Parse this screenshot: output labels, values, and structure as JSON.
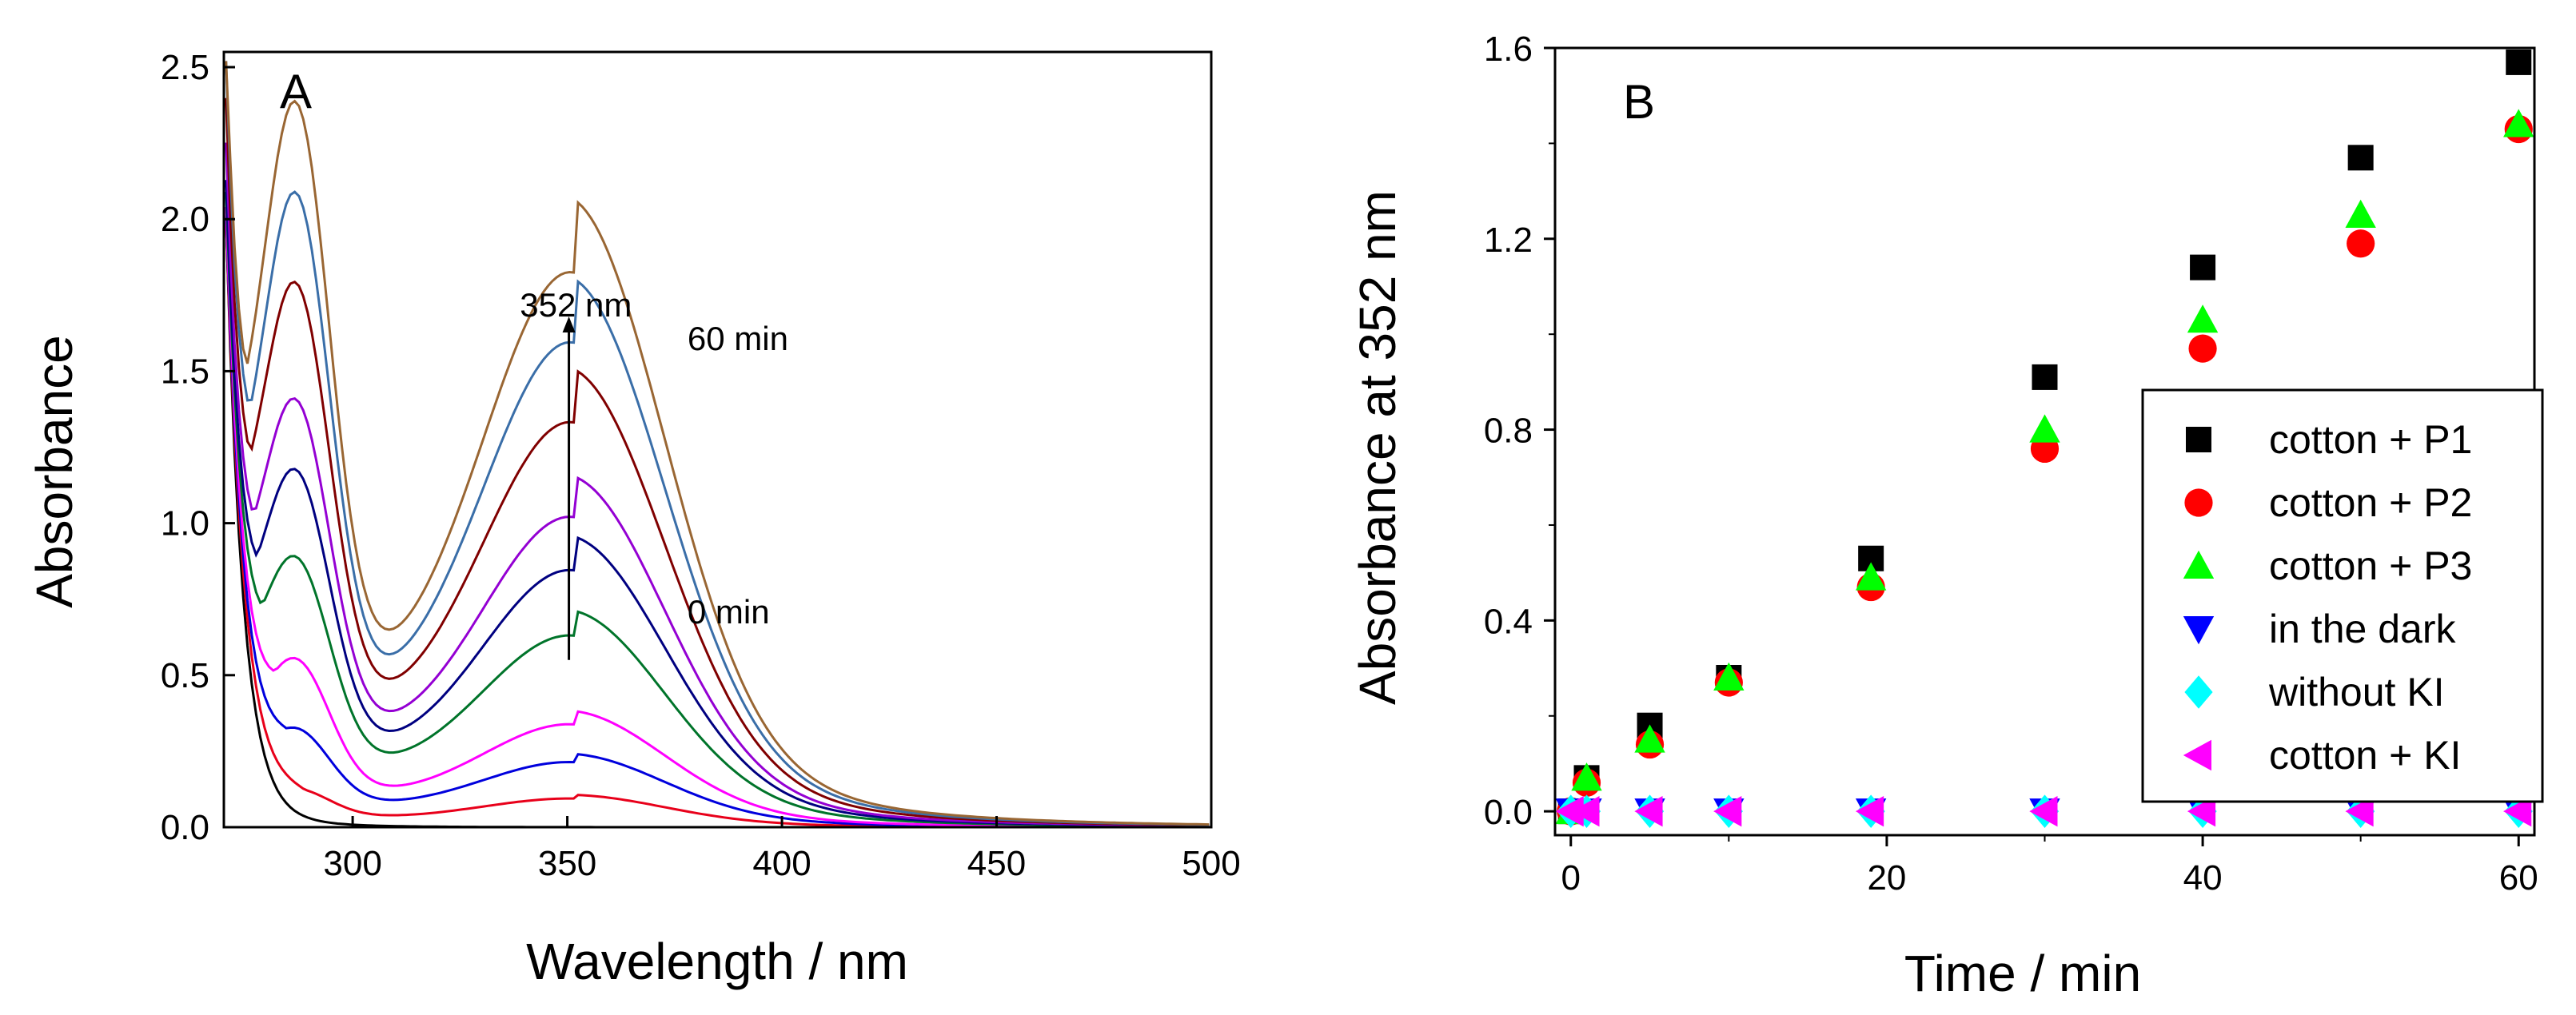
{
  "chart_data": [
    {
      "panel": "A",
      "type": "line",
      "xlabel": "Wavelength / nm",
      "ylabel": "Absorbance",
      "xlim": [
        270,
        500
      ],
      "ylim": [
        0,
        2.55
      ],
      "xticks": [
        300,
        350,
        400,
        450,
        500
      ],
      "yticks": [
        0.0,
        0.5,
        1.0,
        1.5,
        2.0,
        2.5
      ],
      "grid": false,
      "legend": "none",
      "annotations": [
        {
          "text": "352 nm",
          "x": 352,
          "y": 1.68
        },
        {
          "text": "60 min",
          "x": 378,
          "y": 1.57
        },
        {
          "text": "0 min",
          "x": 378,
          "y": 0.67
        }
      ],
      "annotation_arrow": {
        "x": 350,
        "from_y": 0.55,
        "to_y": 1.68
      },
      "series": [
        {
          "color": "#000000",
          "values": {
            "start": 2.2,
            "shoulder": 0.06,
            "peak1": 0.0,
            "valley": 0.0,
            "peak2": 0.0
          }
        },
        {
          "color": "#e8001a",
          "values": {
            "start": 2.2,
            "shoulder": 0.17,
            "peak1": 0.1,
            "valley": 0.05,
            "peak2": 0.08
          }
        },
        {
          "color": "#0000dd",
          "values": {
            "start": 2.2,
            "shoulder": 0.35,
            "peak1": 0.28,
            "valley": 0.12,
            "peak2": 0.18
          }
        },
        {
          "color": "#ff00ff",
          "values": {
            "start": 2.2,
            "shoulder": 0.55,
            "peak1": 0.5,
            "valley": 0.17,
            "peak2": 0.29
          }
        },
        {
          "color": "#00742a",
          "values": {
            "start": 2.2,
            "shoulder": 0.9,
            "peak1": 0.78,
            "valley": 0.32,
            "peak2": 0.54
          }
        },
        {
          "color": "#000080",
          "values": {
            "start": 2.2,
            "shoulder": 1.1,
            "peak1": 1.06,
            "valley": 0.41,
            "peak2": 0.73
          }
        },
        {
          "color": "#9400d3",
          "values": {
            "start": 2.3,
            "shoulder": 1.3,
            "peak1": 1.27,
            "valley": 0.5,
            "peak2": 0.88
          }
        },
        {
          "color": "#800000",
          "values": {
            "start": 2.4,
            "shoulder": 1.55,
            "peak1": 1.64,
            "valley": 0.65,
            "peak2": 1.15
          }
        },
        {
          "color": "#3a6ea8",
          "values": {
            "start": 2.5,
            "shoulder": 1.65,
            "peak1": 1.95,
            "valley": 0.77,
            "peak2": 1.38
          }
        },
        {
          "color": "#996633",
          "values": {
            "start": 2.5,
            "shoulder": 1.88,
            "peak1": 2.23,
            "valley": 0.88,
            "peak2": 1.58
          }
        }
      ]
    },
    {
      "panel": "B",
      "type": "scatter",
      "xlabel": "Time / min",
      "ylabel": "Absorbance at 352 nm",
      "xlim": [
        -1,
        61
      ],
      "ylim": [
        -0.05,
        1.6
      ],
      "xticks": [
        0,
        20,
        40,
        60
      ],
      "yticks": [
        0.0,
        0.4,
        0.8,
        1.2,
        1.6
      ],
      "grid": false,
      "legend": "right",
      "series": [
        {
          "name": "cotton + P1",
          "marker": "square",
          "color": "#000000",
          "x": [
            0,
            1,
            5,
            10,
            19,
            30,
            40,
            50,
            60
          ],
          "y": [
            0.0,
            0.07,
            0.18,
            0.28,
            0.53,
            0.91,
            1.14,
            1.37,
            1.57
          ]
        },
        {
          "name": "cotton + P2",
          "marker": "circle",
          "color": "#ff0000",
          "x": [
            0,
            1,
            5,
            10,
            19,
            30,
            40,
            50,
            60
          ],
          "y": [
            0.0,
            0.06,
            0.14,
            0.27,
            0.47,
            0.76,
            0.97,
            1.19,
            1.43
          ]
        },
        {
          "name": "cotton + P3",
          "marker": "triangle-up",
          "color": "#00ff00",
          "x": [
            0,
            1,
            5,
            10,
            19,
            30,
            40,
            50,
            60
          ],
          "y": [
            0.0,
            0.07,
            0.15,
            0.28,
            0.49,
            0.8,
            1.03,
            1.25,
            1.44
          ]
        },
        {
          "name": "in the dark",
          "marker": "triangle-down",
          "color": "#0000ff",
          "x": [
            0,
            1,
            5,
            10,
            19,
            30,
            40,
            50,
            60
          ],
          "y": [
            0,
            0,
            0,
            0,
            0,
            0,
            0,
            0,
            0
          ]
        },
        {
          "name": "without KI",
          "marker": "diamond",
          "color": "#00ffff",
          "x": [
            0,
            1,
            5,
            10,
            19,
            30,
            40,
            50,
            60
          ],
          "y": [
            0,
            0,
            0,
            0,
            0,
            0,
            0,
            0,
            0
          ]
        },
        {
          "name": "cotton + KI",
          "marker": "triangle-left",
          "color": "#ff00ff",
          "x": [
            0,
            1,
            5,
            10,
            19,
            30,
            40,
            50,
            60
          ],
          "y": [
            0,
            0,
            0,
            0,
            0,
            0,
            0,
            0,
            0
          ]
        }
      ]
    }
  ]
}
